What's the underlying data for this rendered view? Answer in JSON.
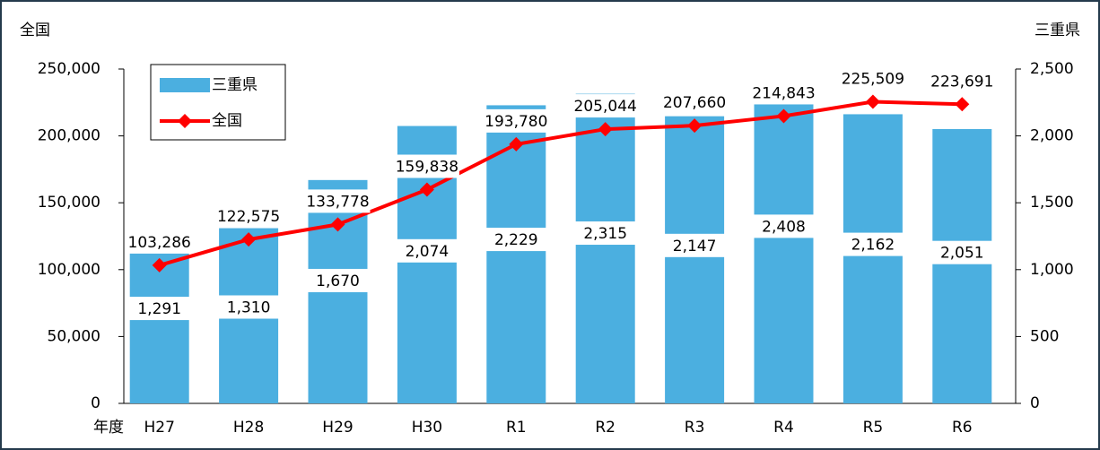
{
  "chart_data": {
    "type": "bar",
    "y_label": "全国",
    "y2_label": "三重県",
    "x_label": "年度",
    "categories": [
      "H27",
      "H28",
      "H29",
      "H30",
      "R1",
      "R2",
      "R3",
      "R4",
      "R5",
      "R6"
    ],
    "series": [
      {
        "name": "三重県",
        "type": "bar",
        "axis": "y2",
        "color": "#4bafe0",
        "values": [
          1291,
          1310,
          1670,
          2074,
          2229,
          2315,
          2147,
          2408,
          2162,
          2051
        ],
        "value_labels": [
          "1,291",
          "1,310",
          "1,670",
          "2,074",
          "2,229",
          "2,315",
          "2,147",
          "2,408",
          "2,162",
          "2,051"
        ]
      },
      {
        "name": "全国",
        "type": "line",
        "color": "#ff0000",
        "values": [
          103286,
          122575,
          133778,
          159838,
          193780,
          205044,
          207660,
          214843,
          225509,
          223691
        ],
        "value_labels": [
          "103,286",
          "122,575",
          "133,778",
          "159,838",
          "193,780",
          "205,044",
          "207,660",
          "214,843",
          "225,509",
          "223,691"
        ]
      }
    ],
    "ylim": [
      0,
      250000
    ],
    "yticks": [
      0,
      {
        "value": 50000,
        "label": "50,000"
      },
      {
        "value": 100000,
        "label": "100,000"
      },
      {
        "value": 150000,
        "label": "150,000"
      },
      {
        "value": 200000,
        "label": "200,000"
      },
      {
        "value": 250000,
        "label": "250,000"
      }
    ],
    "y2lim": [
      0,
      2500
    ],
    "y2ticks": [
      0,
      500,
      {
        "value": 1000,
        "label": "1,000"
      },
      {
        "value": 1500,
        "label": "1,500"
      },
      {
        "value": 2000,
        "label": "2,000"
      },
      {
        "value": 2500,
        "label": "2,500"
      }
    ],
    "grid": false,
    "legend": "upper left"
  }
}
